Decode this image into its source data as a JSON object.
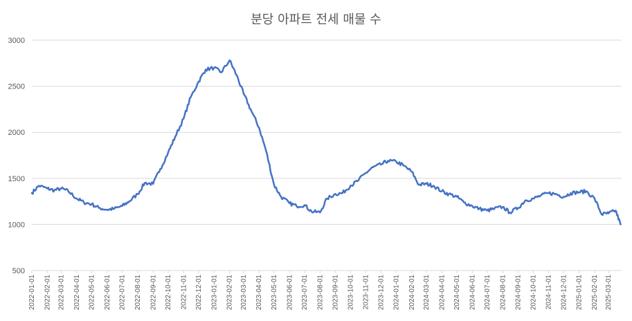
{
  "chart_data": {
    "type": "line",
    "title": "분당 아파트 전세 매물 수",
    "xlabel": "",
    "ylabel": "",
    "ylim": [
      500,
      3000
    ],
    "yticks": [
      "500",
      "1000",
      "1500",
      "2000",
      "2500",
      "3000"
    ],
    "grid": true,
    "legend": "none",
    "line_color": "#4472C4",
    "grid_color": "#D9D9D9",
    "x_tick_labels": [
      "2022-01-01",
      "2022-02-01",
      "2022-03-01",
      "2022-04-01",
      "2022-05-01",
      "2022-06-01",
      "2022-07-01",
      "2022-08-01",
      "2022-09-01",
      "2022-10-01",
      "2022-11-01",
      "2022-12-01",
      "2023-01-01",
      "2023-02-01",
      "2023-03-01",
      "2023-04-01",
      "2023-05-01",
      "2023-06-01",
      "2023-07-01",
      "2023-08-01",
      "2023-09-01",
      "2023-10-01",
      "2023-11-01",
      "2023-12-01",
      "2024-01-01",
      "2024-02-01",
      "2024-03-01",
      "2024-04-01",
      "2024-05-01",
      "2024-06-01",
      "2024-07-01",
      "2024-08-01",
      "2024-09-01",
      "2024-10-01",
      "2024-11-01",
      "2024-12-01",
      "2025-01-01",
      "2025-02-01",
      "2025-03-01"
    ],
    "series": [
      {
        "x": [
          "2022-01-01",
          "2022-01-15",
          "2022-02-01",
          "2022-02-15",
          "2022-03-01",
          "2022-03-15",
          "2022-04-01",
          "2022-04-15",
          "2022-05-01",
          "2022-05-15",
          "2022-06-01",
          "2022-06-15",
          "2022-07-01",
          "2022-07-15",
          "2022-08-01",
          "2022-08-15",
          "2022-09-01",
          "2022-09-15",
          "2022-10-01",
          "2022-10-15",
          "2022-11-01",
          "2022-11-15",
          "2022-12-01",
          "2022-12-15",
          "2023-01-01",
          "2023-01-15",
          "2023-02-01",
          "2023-02-15",
          "2023-03-01",
          "2023-03-15",
          "2023-04-01",
          "2023-04-15",
          "2023-05-01",
          "2023-05-15",
          "2023-06-01",
          "2023-06-15",
          "2023-07-01",
          "2023-07-15",
          "2023-08-01",
          "2023-08-15",
          "2023-09-01",
          "2023-09-15",
          "2023-10-01",
          "2023-10-15",
          "2023-11-01",
          "2023-11-15",
          "2023-12-01",
          "2023-12-15",
          "2024-01-01",
          "2024-01-15",
          "2024-02-01",
          "2024-02-15",
          "2024-03-01",
          "2024-03-15",
          "2024-04-01",
          "2024-04-15",
          "2024-05-01",
          "2024-05-15",
          "2024-06-01",
          "2024-06-15",
          "2024-07-01",
          "2024-07-15",
          "2024-08-01",
          "2024-08-15",
          "2024-09-01",
          "2024-09-15",
          "2024-10-01",
          "2024-10-15",
          "2024-11-01",
          "2024-11-15",
          "2024-12-01",
          "2024-12-15",
          "2025-01-01",
          "2025-01-15",
          "2025-02-01",
          "2025-02-15",
          "2025-03-01",
          "2025-03-15",
          "2025-03-25"
        ],
        "y": [
          1340,
          1420,
          1390,
          1370,
          1390,
          1360,
          1280,
          1240,
          1220,
          1180,
          1160,
          1170,
          1200,
          1250,
          1330,
          1450,
          1440,
          1600,
          1780,
          1950,
          2150,
          2380,
          2550,
          2680,
          2700,
          2650,
          2780,
          2620,
          2420,
          2250,
          2050,
          1800,
          1430,
          1300,
          1230,
          1200,
          1210,
          1140,
          1130,
          1280,
          1330,
          1340,
          1420,
          1470,
          1560,
          1620,
          1650,
          1690,
          1680,
          1640,
          1570,
          1430,
          1440,
          1420,
          1360,
          1330,
          1300,
          1240,
          1200,
          1170,
          1150,
          1170,
          1190,
          1130,
          1180,
          1260,
          1280,
          1310,
          1340,
          1330,
          1300,
          1340,
          1350,
          1360,
          1280,
          1110,
          1120,
          1150,
          1000
        ]
      }
    ]
  }
}
